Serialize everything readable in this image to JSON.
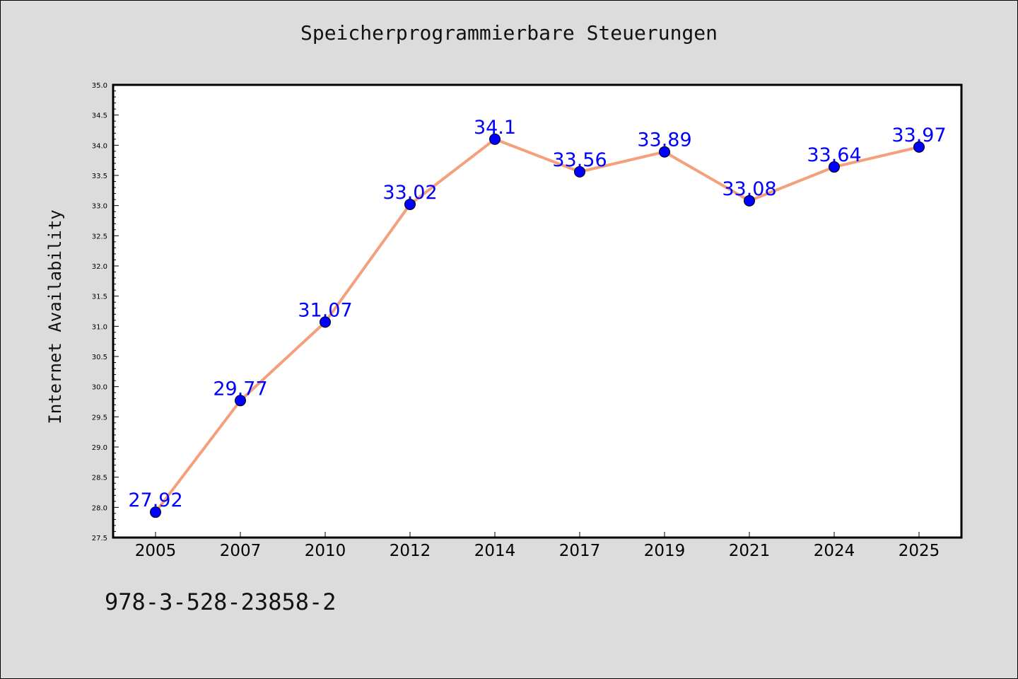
{
  "chart_data": {
    "type": "line",
    "title": "Speicherprogrammierbare Steuerungen",
    "xlabel": "",
    "ylabel": "Internet Availability",
    "categories": [
      "2005",
      "2007",
      "2010",
      "2012",
      "2014",
      "2017",
      "2019",
      "2021",
      "2024",
      "2025"
    ],
    "series": [
      {
        "values": [
          27.92,
          29.77,
          31.07,
          33.02,
          34.1,
          33.56,
          33.89,
          33.08,
          33.64,
          33.97
        ],
        "data_labels": [
          "27.92",
          "29.77",
          "31.07",
          "33.02",
          "34.1",
          "33.56",
          "33.89",
          "33.08",
          "33.64",
          "33.97"
        ]
      }
    ],
    "ylim": [
      27.5,
      35.0
    ],
    "y_ticks": [
      "27.5",
      "28.0",
      "28.5",
      "29.0",
      "29.5",
      "30.0",
      "30.5",
      "31.0",
      "31.5",
      "32.0",
      "32.5",
      "33.0",
      "33.5",
      "34.0",
      "34.5",
      "35.0"
    ],
    "grid": false,
    "legend": "none",
    "colors": {
      "line": "#f4a07c",
      "marker": "#0000ff",
      "data_label": "#0000ff",
      "plot_background": "#ffffff",
      "page_background": "#dcdcdc"
    }
  },
  "footer_text": "978-3-528-23858-2"
}
